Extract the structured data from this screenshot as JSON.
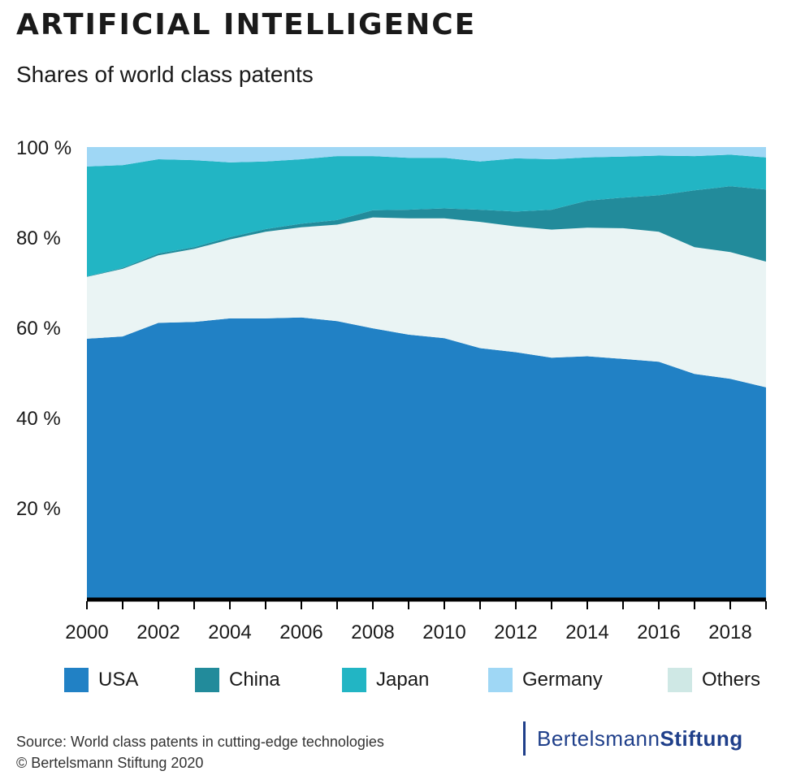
{
  "header": {
    "title": "ARTIFICIAL INTELLIGENCE",
    "subtitle": "Shares of world class patents"
  },
  "colors": {
    "USA": "#2181c5",
    "China": "#228b9b",
    "Japan": "#22b5c4",
    "Germany": "#9fd7f5",
    "Others": "#eaf4f4"
  },
  "chart_data": {
    "type": "area",
    "stacked": true,
    "x": [
      2000,
      2001,
      2002,
      2003,
      2004,
      2005,
      2006,
      2007,
      2008,
      2009,
      2010,
      2011,
      2012,
      2013,
      2014,
      2015,
      2016,
      2017,
      2018,
      2019
    ],
    "series": [
      {
        "name": "USA",
        "values": [
          57.5,
          58,
          61,
          61.2,
          62,
          62,
          62.2,
          61.4,
          59.8,
          58.4,
          57.6,
          55.4,
          54.5,
          53.3,
          53.6,
          53,
          52.4,
          49.7,
          48.6,
          46.7
        ]
      },
      {
        "name": "Others",
        "values": [
          13.7,
          15,
          15,
          16.2,
          17.5,
          19.2,
          20,
          21.4,
          24.6,
          25.8,
          26.6,
          28,
          27.9,
          28.4,
          28.5,
          29,
          28.8,
          28.1,
          28.1,
          27.9
        ]
      },
      {
        "name": "China",
        "values": [
          0.1,
          0.2,
          0.4,
          0.4,
          0.5,
          0.6,
          0.8,
          1,
          1.6,
          1.9,
          2.2,
          2.7,
          3.3,
          4.4,
          6,
          6.8,
          8.1,
          12.6,
          14.6,
          16
        ]
      },
      {
        "name": "Japan",
        "values": [
          24.4,
          22.8,
          20.9,
          19.3,
          16.6,
          15,
          14.3,
          14.2,
          12,
          11.5,
          11.2,
          10.7,
          11.8,
          11.2,
          9.6,
          9.1,
          8.8,
          7.6,
          7,
          7.1
        ]
      },
      {
        "name": "Germany",
        "values": [
          4.3,
          4,
          2.7,
          2.9,
          3.4,
          3.2,
          2.7,
          2,
          2,
          2.4,
          2.4,
          3.2,
          2.5,
          2.7,
          2.3,
          2.1,
          1.9,
          2,
          1.7,
          2.3
        ]
      }
    ],
    "legend": [
      "USA",
      "China",
      "Japan",
      "Germany",
      "Others"
    ],
    "ylim": [
      0,
      100
    ],
    "y_ticks": [
      "20 %",
      "40 %",
      "60 %",
      "80 %",
      "100 %"
    ],
    "y_tick_values": [
      20,
      40,
      60,
      80,
      100
    ],
    "x_ticks": [
      "2000",
      "2002",
      "2004",
      "2006",
      "2008",
      "2010",
      "2012",
      "2014",
      "2016",
      "2018"
    ],
    "x_tick_values": [
      2000,
      2002,
      2004,
      2006,
      2008,
      2010,
      2012,
      2014,
      2016,
      2018
    ],
    "legend_position": "bottom"
  },
  "footer": {
    "source_line": "Source: World class patents in cutting-edge technologies",
    "copyright_line": "© Bertelsmann Stiftung 2020",
    "brand_part1": "Bertelsmann",
    "brand_part2": "Stiftung"
  }
}
